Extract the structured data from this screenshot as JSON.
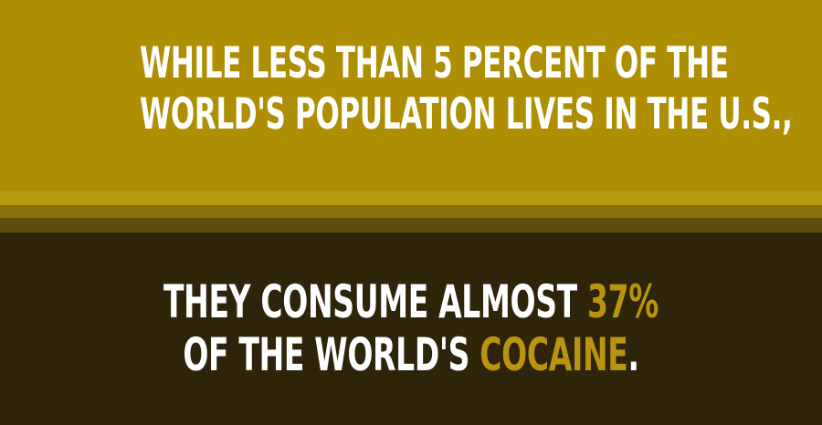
{
  "colors": {
    "top_background": "#ae8f03",
    "stripe_1": "#b8980f",
    "stripe_2": "#88700a",
    "stripe_3": "#5d4d0c",
    "bottom_background": "#2d2409",
    "text": "#ffffff",
    "accent": "#b89411"
  },
  "top_text": {
    "line_1": "WHILE LESS THAN 5 PERCENT OF THE",
    "line_2": "WORLD'S POPULATION LIVES IN THE U.S.,"
  },
  "bottom_text": {
    "line_1_prefix": "THEY CONSUME ALMOST ",
    "line_1_highlight": "37%",
    "line_2_prefix": "OF THE WORLD'S ",
    "line_2_highlight": "COCAINE",
    "line_2_suffix": "."
  }
}
